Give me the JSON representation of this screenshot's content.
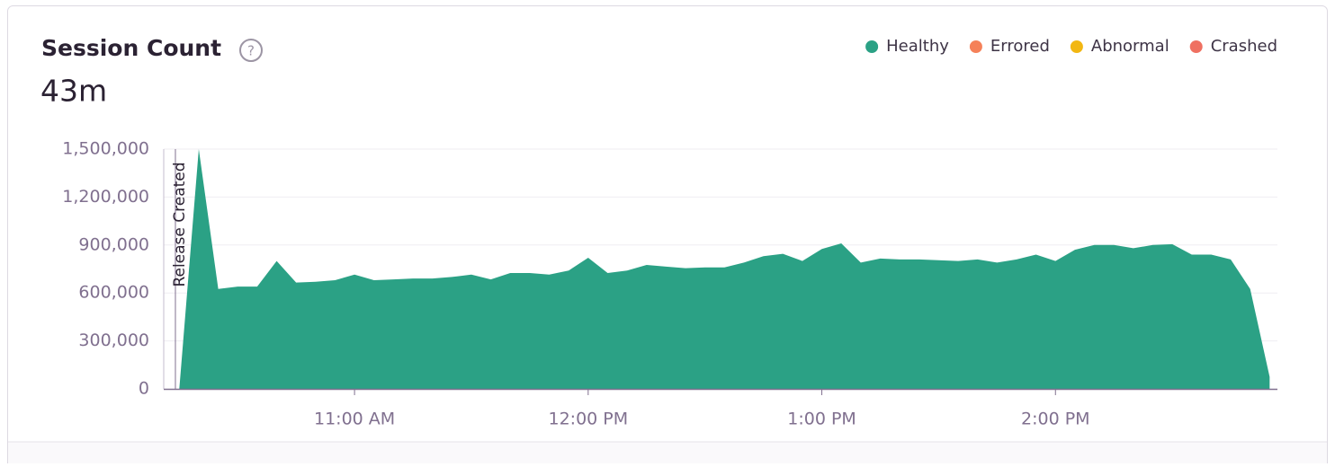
{
  "chart_data": {
    "type": "area",
    "title": "Session Count",
    "big_number": "43m",
    "x": [
      615,
      620,
      625,
      630,
      635,
      640,
      645,
      650,
      655,
      660,
      665,
      670,
      675,
      680,
      685,
      690,
      695,
      700,
      705,
      710,
      715,
      720,
      725,
      730,
      735,
      740,
      745,
      750,
      755,
      760,
      765,
      770,
      775,
      780,
      785,
      790,
      795,
      800,
      805,
      810,
      815,
      820,
      825,
      830,
      835,
      840,
      845,
      850,
      855,
      860,
      865,
      870,
      875,
      880,
      885,
      890,
      895
    ],
    "series": [
      {
        "name": "Healthy",
        "color": "#2ba185",
        "values": [
          0,
          1500000,
          625000,
          640000,
          640000,
          800000,
          665000,
          670000,
          680000,
          715000,
          680000,
          685000,
          690000,
          690000,
          700000,
          715000,
          685000,
          725000,
          725000,
          715000,
          740000,
          820000,
          725000,
          740000,
          775000,
          765000,
          755000,
          760000,
          760000,
          790000,
          830000,
          845000,
          800000,
          875000,
          910000,
          790000,
          815000,
          810000,
          810000,
          805000,
          800000,
          810000,
          790000,
          810000,
          840000,
          800000,
          870000,
          900000,
          900000,
          880000,
          900000,
          905000,
          840000,
          840000,
          810000,
          625000,
          75000
        ]
      },
      {
        "name": "Errored",
        "color": "#f58159"
      },
      {
        "name": "Abnormal",
        "color": "#f2b712"
      },
      {
        "name": "Crashed",
        "color": "#ef7061"
      }
    ],
    "xlim": [
      611,
      897
    ],
    "xticks": [
      {
        "value": 660,
        "label": "11:00 AM"
      },
      {
        "value": 720,
        "label": "12:00 PM"
      },
      {
        "value": 780,
        "label": "1:00 PM"
      },
      {
        "value": 840,
        "label": "2:00 PM"
      }
    ],
    "ylim": [
      0,
      1500000
    ],
    "yticks": [
      0,
      {
        "value": 300000,
        "label": "300,000"
      },
      {
        "value": 600000,
        "label": "600,000"
      },
      {
        "value": 900000,
        "label": "900,000"
      },
      {
        "value": 1200000,
        "label": "1,200,000"
      },
      {
        "value": 1500000,
        "label": "1,500,000"
      }
    ],
    "grid": true,
    "annotation": {
      "text": "Release Created",
      "x": 614
    }
  }
}
